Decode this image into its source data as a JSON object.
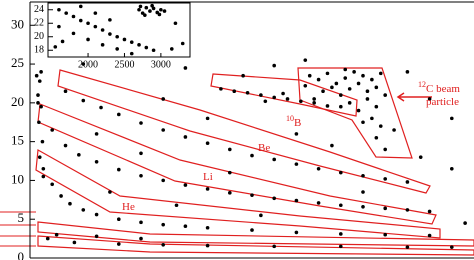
{
  "chart_data": [
    {
      "type": "scatter",
      "color": "#000000",
      "xlim": [
        0,
        100
      ],
      "ylim": [
        0,
        33
      ],
      "yticks": [
        0,
        5,
        10,
        15,
        20,
        25,
        30
      ],
      "x": [
        63,
        65,
        67,
        69,
        71,
        73,
        75,
        77,
        79,
        66,
        68,
        70,
        72,
        74,
        76,
        78,
        70,
        72,
        74,
        76,
        78,
        75,
        77,
        79,
        78,
        80,
        64,
        80,
        62,
        71,
        43,
        46,
        49,
        52,
        55,
        58,
        61,
        64,
        67,
        53,
        57,
        8,
        12,
        16,
        20,
        25,
        30,
        35,
        40,
        45,
        50,
        55,
        60,
        65,
        70,
        75,
        80,
        85,
        5,
        8,
        11,
        15,
        20,
        25,
        30,
        35,
        40,
        45,
        50,
        55,
        60,
        65,
        70,
        75,
        80,
        85,
        90,
        3,
        5,
        7,
        9,
        12,
        15,
        20,
        25,
        30,
        35,
        40,
        50,
        60,
        70,
        80,
        90,
        4,
        10,
        20,
        30,
        40,
        55,
        70,
        85,
        95,
        6,
        15,
        25,
        1.5,
        2.2,
        1.8,
        2.5,
        2,
        2.8,
        2.2,
        3,
        2.5,
        1.8,
        12,
        22,
        35,
        48,
        55,
        85,
        90,
        95,
        30,
        40,
        25,
        60,
        68,
        88,
        18,
        45,
        75,
        95,
        52,
        33,
        98,
        8,
        62,
        82,
        15
      ],
      "values": [
        23.5,
        23,
        23.8,
        22.5,
        23.2,
        24,
        23.5,
        23,
        23.8,
        21.5,
        22,
        21,
        21.8,
        22.5,
        21.5,
        22,
        19.5,
        20,
        19,
        20.5,
        19.5,
        17.5,
        18,
        17,
        15.5,
        14,
        20.5,
        21,
        22.2,
        24.3,
        21.8,
        21.5,
        21.3,
        21,
        20.7,
        20.5,
        20.2,
        20,
        19.6,
        20.2,
        21.2,
        21.5,
        20.3,
        19.4,
        18.5,
        17.4,
        16.5,
        15.6,
        14.8,
        14,
        13.2,
        12.7,
        12.1,
        11.5,
        11,
        10.6,
        10.2,
        9.8,
        16.5,
        14.5,
        13.3,
        12.4,
        11.4,
        10.6,
        10,
        9.4,
        8.9,
        8.4,
        8.1,
        7.7,
        7.4,
        7.1,
        6.8,
        6.6,
        6.4,
        6.2,
        6,
        11.5,
        9.5,
        8,
        7,
        6.2,
        5.6,
        5,
        4.6,
        4.3,
        4.1,
        3.9,
        3.6,
        3.3,
        3.1,
        3,
        2.9,
        2.5,
        2,
        1.8,
        1.7,
        1.6,
        1.5,
        1.5,
        1.4,
        1.4,
        3,
        2.8,
        2.5,
        23.5,
        22.8,
        21,
        19.5,
        17.5,
        15,
        13,
        10.5,
        24,
        20,
        25,
        28,
        24.5,
        23.5,
        24.8,
        24,
        20.5,
        18,
        20.5,
        18,
        13.5,
        16,
        14.5,
        13,
        8.5,
        11,
        8.5,
        11.5,
        5.5,
        6.8,
        4.5,
        27,
        25.5,
        16.5,
        16
      ],
      "annotations": [
        {
          "sup": "12",
          "label": "C beam"
        },
        {
          "label": "particle"
        },
        {
          "sup": "10",
          "label": "B"
        },
        {
          "label": "Be"
        },
        {
          "label": "Li"
        },
        {
          "label": "He"
        }
      ]
    },
    {
      "type": "scatter",
      "color": "#000000",
      "xlim": [
        1450,
        3400
      ],
      "ylim": [
        17,
        25
      ],
      "xticks": [
        2000,
        2500,
        3000
      ],
      "yticks": [
        18,
        20,
        22,
        24
      ],
      "x": [
        2700,
        2750,
        2800,
        2850,
        2900,
        2950,
        3000,
        2780,
        2880,
        2980,
        3050,
        2720,
        1600,
        1700,
        1800,
        1900,
        2000,
        2100,
        2200,
        2300,
        2400,
        2500,
        2600,
        2700,
        2800,
        2900,
        1600,
        1800,
        2000,
        2200,
        2400,
        1550,
        1650,
        2100,
        2300,
        3200,
        3300,
        2600,
        1900,
        3150
      ],
      "values": [
        24,
        23.5,
        24.3,
        23.8,
        24.2,
        23.6,
        24,
        23.2,
        24.6,
        23.3,
        23.8,
        24.5,
        24,
        23.5,
        23,
        22.4,
        22,
        21.5,
        21,
        20.4,
        20,
        19.6,
        19.2,
        18.8,
        18.4,
        18,
        21.5,
        20.5,
        19.6,
        18.8,
        18.2,
        18.5,
        19.3,
        23.5,
        22.5,
        22,
        19,
        17.5,
        24.5,
        18.2
      ]
    }
  ]
}
